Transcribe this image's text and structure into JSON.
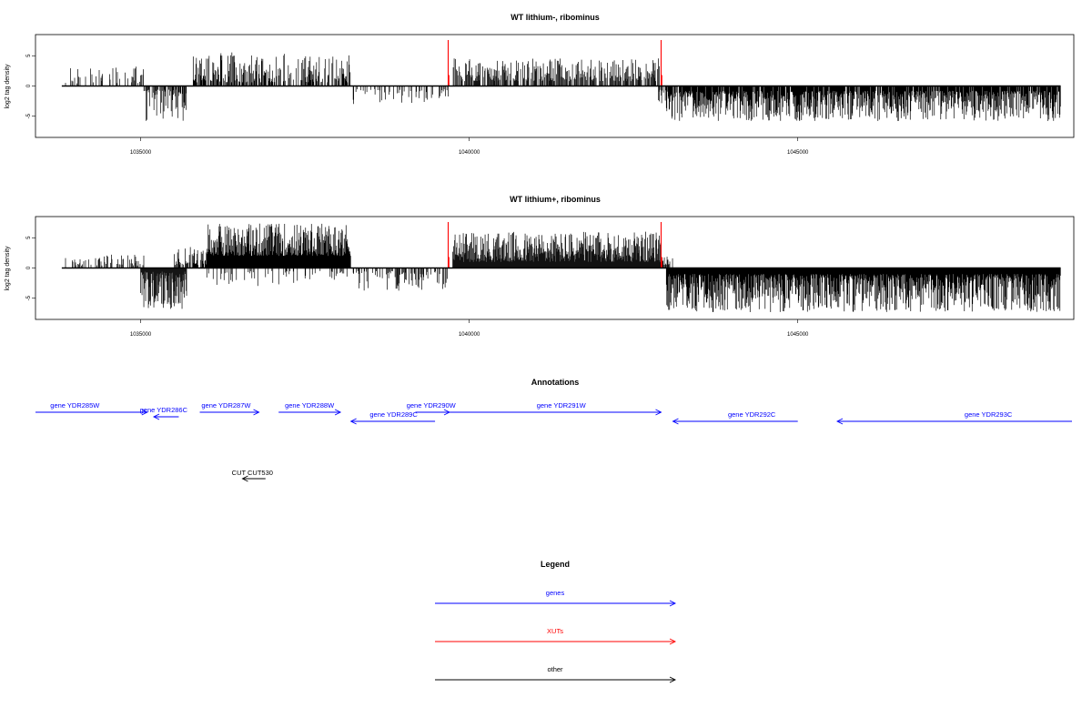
{
  "colors": {
    "gene": "#0000ff",
    "xut": "#ff0000",
    "other": "#000000",
    "data_line": "#000000",
    "highlight": "#ff0000"
  },
  "chart_data": [
    {
      "type": "bar",
      "title": "WT lithium-, ribominus",
      "ylabel": "log2 tag density",
      "xlabel": "",
      "xlim": [
        1033400,
        1049200
      ],
      "ylim": [
        -8.5,
        8.5
      ],
      "xticks": [
        1035000,
        1040000,
        1045000
      ],
      "yticks": [
        5,
        0,
        -5
      ],
      "grid": false,
      "baseline": [
        1033800,
        1049000
      ],
      "segments": [
        {
          "from": 1033850,
          "to": 1035050,
          "density": 0.22,
          "min": 0.4,
          "max": 3.3,
          "dir": "up"
        },
        {
          "from": 1035050,
          "to": 1035700,
          "density": 0.6,
          "min": 0.6,
          "max": 5.8,
          "dir": "down"
        },
        {
          "from": 1035800,
          "to": 1038200,
          "density": 0.55,
          "min": 0.6,
          "max": 5.6,
          "dir": "up"
        },
        {
          "from": 1038200,
          "to": 1039700,
          "density": 0.2,
          "min": 0.5,
          "max": 3.0,
          "dir": "down"
        },
        {
          "from": 1039750,
          "to": 1042900,
          "density": 0.55,
          "min": 0.8,
          "max": 4.6,
          "dir": "up"
        },
        {
          "from": 1042880,
          "to": 1043000,
          "density": 0.5,
          "min": 0.5,
          "max": 3.0,
          "dir": "down"
        },
        {
          "from": 1043000,
          "to": 1049000,
          "density": 0.9,
          "min": 0.8,
          "max": 5.8,
          "dir": "down"
        }
      ],
      "highlights": [
        {
          "x": 1039680,
          "y": 7.6
        },
        {
          "x": 1042920,
          "y": 7.6
        }
      ]
    },
    {
      "type": "bar",
      "title": "WT lithium+, ribominus",
      "ylabel": "log2 tag density",
      "xlabel": "",
      "xlim": [
        1033400,
        1049200
      ],
      "ylim": [
        -8.5,
        8.5
      ],
      "xticks": [
        1035000,
        1040000,
        1045000
      ],
      "yticks": [
        5,
        0,
        -5
      ],
      "grid": false,
      "baseline": [
        1033800,
        1049000
      ],
      "segments": [
        {
          "from": 1033850,
          "to": 1035050,
          "density": 0.3,
          "min": 0.4,
          "max": 2.2,
          "dir": "up"
        },
        {
          "from": 1035000,
          "to": 1035700,
          "density": 1.0,
          "min": 0.6,
          "max": 6.8,
          "dir": "down"
        },
        {
          "from": 1035500,
          "to": 1036000,
          "density": 0.5,
          "min": 0.5,
          "max": 3.5,
          "dir": "up"
        },
        {
          "from": 1036000,
          "to": 1038200,
          "density": 1.5,
          "min": 2.0,
          "max": 7.5,
          "dir": "up"
        },
        {
          "from": 1036000,
          "to": 1038200,
          "density": 0.15,
          "min": 0.5,
          "max": 3.0,
          "dir": "down"
        },
        {
          "from": 1038200,
          "to": 1039700,
          "density": 0.3,
          "min": 0.5,
          "max": 3.8,
          "dir": "down"
        },
        {
          "from": 1039750,
          "to": 1042950,
          "density": 1.3,
          "min": 1.0,
          "max": 6.0,
          "dir": "up"
        },
        {
          "from": 1042900,
          "to": 1043100,
          "density": 0.5,
          "min": 0.5,
          "max": 2.0,
          "dir": "up"
        },
        {
          "from": 1043000,
          "to": 1049000,
          "density": 1.5,
          "min": 1.0,
          "max": 7.3,
          "dir": "down"
        }
      ],
      "highlights": [
        {
          "x": 1039680,
          "y": 7.6
        },
        {
          "x": 1042920,
          "y": 7.6
        }
      ]
    }
  ],
  "annotations": {
    "title": "Annotations",
    "genes": [
      {
        "label": "gene YDR285W",
        "x1": 1033400,
        "x2": 1035100,
        "strand": "+",
        "row": 0,
        "label_x": 1034000
      },
      {
        "label": "gene YDR286C",
        "x1": 1035200,
        "x2": 1035580,
        "strand": "-",
        "row": 1,
        "label_x": 1035350
      },
      {
        "label": "gene YDR287W",
        "x1": 1035900,
        "x2": 1036800,
        "strand": "+",
        "row": 0,
        "label_x": 1036300
      },
      {
        "label": "gene YDR288W",
        "x1": 1037100,
        "x2": 1038040,
        "strand": "+",
        "row": 0,
        "label_x": 1037570
      },
      {
        "label": "gene YDR289C",
        "x1": 1038200,
        "x2": 1039480,
        "strand": "-",
        "row": 2,
        "label_x": 1038850
      },
      {
        "label": "gene YDR290W",
        "x1": 1039180,
        "x2": 1039700,
        "strand": "+",
        "row": 0,
        "label_x": 1039420
      },
      {
        "label": "gene YDR291W",
        "x1": 1039700,
        "x2": 1042920,
        "strand": "+",
        "row": 0,
        "label_x": 1041400
      },
      {
        "label": "gene YDR292C",
        "x1": 1043100,
        "x2": 1045000,
        "strand": "-",
        "row": 2,
        "label_x": 1044300
      },
      {
        "label": "gene YDR293C",
        "x1": 1045600,
        "x2": 1049200,
        "strand": "-",
        "row": 2,
        "label_x": 1047900
      }
    ],
    "others": [
      {
        "label": "CUT CUT530",
        "x1": 1036550,
        "x2": 1036900,
        "strand": "-",
        "label_x": 1036700
      }
    ]
  },
  "legend": {
    "title": "Legend",
    "items": [
      {
        "label": "genes",
        "color": "#0000ff"
      },
      {
        "label": "XUTs",
        "color": "#ff0000"
      },
      {
        "label": "other",
        "color": "#000000"
      }
    ]
  }
}
